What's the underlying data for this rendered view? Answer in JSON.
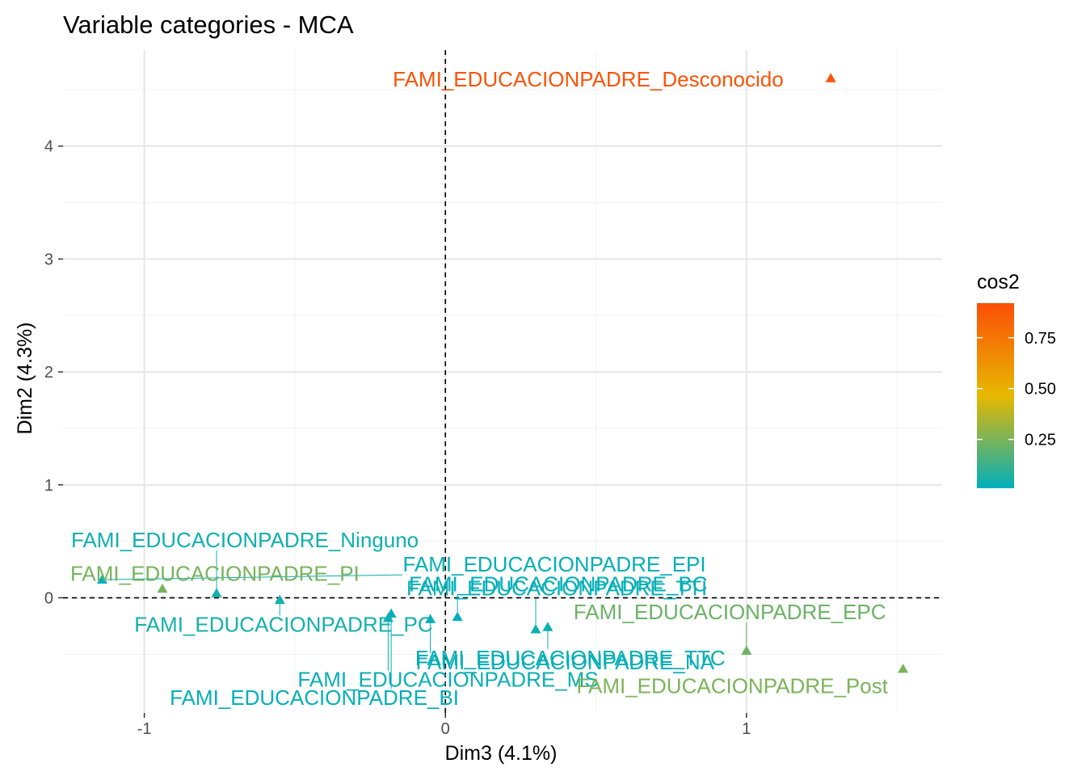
{
  "chart_data": {
    "type": "scatter",
    "title": "Variable categories - MCA",
    "xlabel": "Dim3 (4.1%)",
    "ylabel": "Dim2 (4.3%)",
    "xlim": [
      -1.27,
      1.65
    ],
    "ylim": [
      -1.02,
      4.85
    ],
    "xticks": [
      -1,
      0,
      1
    ],
    "yticks": [
      0,
      1,
      2,
      3,
      4
    ],
    "grid": true,
    "origin_lines": true,
    "legend": {
      "title": "cos2",
      "position": "right",
      "type": "colorbar",
      "ticks": [
        "0.25",
        "0.50",
        "0.75"
      ],
      "tick_values": [
        0.25,
        0.5,
        0.75
      ],
      "range": [
        0.01,
        0.92
      ],
      "colors": [
        "#00AFBB",
        "#E7B800",
        "#FC4E07"
      ]
    },
    "points": [
      {
        "label": "FAMI_EDUCACIONPADRE_Desconocido",
        "x": 1.28,
        "y": 4.6,
        "cos2": 0.9
      },
      {
        "label": "FAMI_EDUCACIONPADRE_Ninguno",
        "x": -0.76,
        "y": 0.04,
        "cos2": 0.04
      },
      {
        "label": "FAMI_EDUCACIONPADRE_PI",
        "x": -0.94,
        "y": 0.08,
        "cos2": 0.24
      },
      {
        "label": "FAMI_EDUCACIONPADRE_PC",
        "x": -0.55,
        "y": -0.02,
        "cos2": 0.05
      },
      {
        "label": "FAMI_EDUCACIONPADRE_BI",
        "x": -0.18,
        "y": -0.14,
        "cos2": 0.02
      },
      {
        "label": "FAMI_EDUCACIONPADRE_BC",
        "x": 0.04,
        "y": -0.17,
        "cos2": 0.01
      },
      {
        "label": "FAMI_EDUCACIONPADRE_NA",
        "x": -0.05,
        "y": -0.19,
        "cos2": 0.01
      },
      {
        "label": "FAMI_EDUCACIONPADRE_TTI",
        "x": 0.3,
        "y": -0.28,
        "cos2": 0.03
      },
      {
        "label": "FAMI_EDUCACIONPADRE_TTC",
        "x": 0.34,
        "y": -0.26,
        "cos2": 0.03
      },
      {
        "label": "FAMI_EDUCACIONPADRE_EPI",
        "x": -1.14,
        "y": 0.16,
        "cos2": 0.02
      },
      {
        "label": "FAMI_EDUCACIONPADRE_EPC",
        "x": 1.0,
        "y": -0.47,
        "cos2": 0.22
      },
      {
        "label": "FAMI_EDUCACIONPADRE_MS",
        "x": -0.19,
        "y": -0.18,
        "cos2": 0.03
      },
      {
        "label": "FAMI_EDUCACIONPADRE_Post",
        "x": 1.52,
        "y": -0.63,
        "cos2": 0.25
      }
    ]
  }
}
